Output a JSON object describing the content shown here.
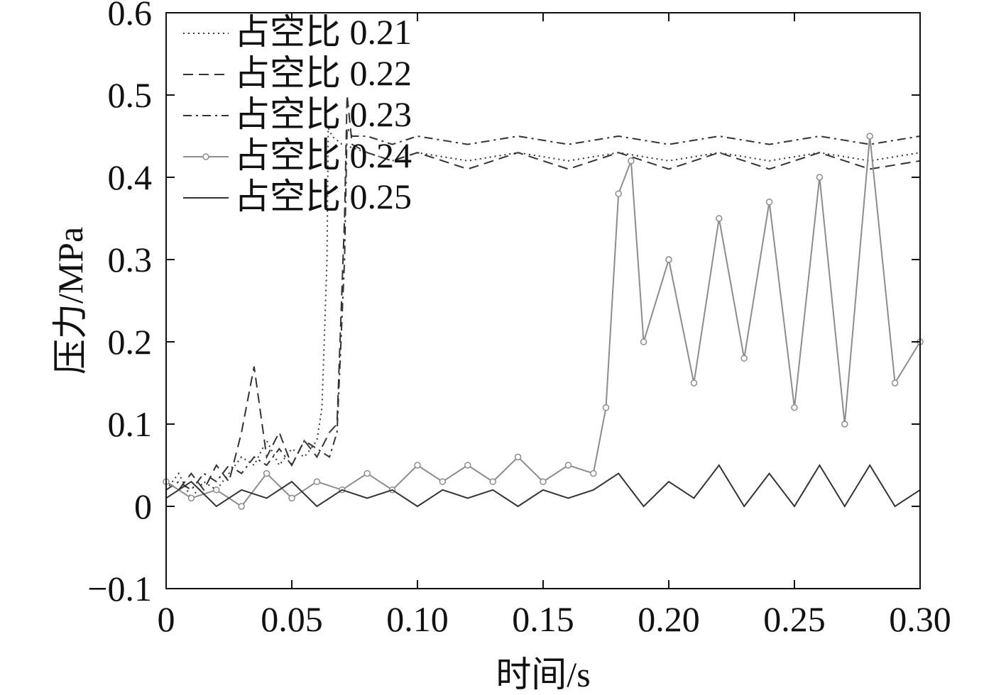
{
  "chart_data": {
    "type": "line",
    "xlabel": "时间/s",
    "ylabel": "压力/MPa",
    "xlim": [
      0,
      0.3
    ],
    "ylim": [
      -0.1,
      0.6
    ],
    "x_ticks": [
      0,
      0.05,
      0.1,
      0.15,
      0.2,
      0.25,
      0.3
    ],
    "x_tick_labels": [
      "0",
      "0.05",
      "0.10",
      "0.15",
      "0.20",
      "0.25",
      "0.30"
    ],
    "y_ticks": [
      -0.1,
      0,
      0.1,
      0.2,
      0.3,
      0.4,
      0.5,
      0.6
    ],
    "y_tick_labels": [
      "−0.1",
      "0",
      "0.1",
      "0.2",
      "0.3",
      "0.4",
      "0.5",
      "0.6"
    ],
    "grid": false,
    "legend_position": "top-left",
    "series": [
      {
        "name": "占空比 0.21",
        "style": "dotted",
        "color": "#333333",
        "x": [
          0,
          0.005,
          0.01,
          0.015,
          0.02,
          0.025,
          0.03,
          0.035,
          0.04,
          0.045,
          0.05,
          0.055,
          0.06,
          0.062,
          0.064,
          0.0645,
          0.066,
          0.07,
          0.08,
          0.09,
          0.1,
          0.12,
          0.14,
          0.16,
          0.18,
          0.2,
          0.22,
          0.24,
          0.26,
          0.28,
          0.3
        ],
        "y": [
          0.02,
          0.04,
          0.01,
          0.03,
          0.02,
          0.04,
          0.06,
          0.05,
          0.08,
          0.05,
          0.07,
          0.06,
          0.08,
          0.12,
          0.3,
          0.46,
          0.45,
          0.44,
          0.43,
          0.42,
          0.43,
          0.42,
          0.43,
          0.42,
          0.43,
          0.42,
          0.43,
          0.42,
          0.43,
          0.42,
          0.43
        ]
      },
      {
        "name": "占空比 0.22",
        "style": "dashed",
        "color": "#333333",
        "x": [
          0,
          0.005,
          0.01,
          0.015,
          0.02,
          0.025,
          0.03,
          0.035,
          0.04,
          0.045,
          0.05,
          0.055,
          0.06,
          0.065,
          0.068,
          0.071,
          0.072,
          0.074,
          0.08,
          0.09,
          0.1,
          0.12,
          0.14,
          0.16,
          0.18,
          0.2,
          0.22,
          0.24,
          0.26,
          0.28,
          0.3
        ],
        "y": [
          0.03,
          0.02,
          0.04,
          0.02,
          0.05,
          0.03,
          0.09,
          0.17,
          0.06,
          0.09,
          0.05,
          0.08,
          0.06,
          0.09,
          0.1,
          0.35,
          0.5,
          0.44,
          0.43,
          0.42,
          0.43,
          0.41,
          0.43,
          0.41,
          0.43,
          0.41,
          0.43,
          0.41,
          0.43,
          0.41,
          0.42
        ]
      },
      {
        "name": "占空比 0.23",
        "style": "dashdot",
        "color": "#333333",
        "x": [
          0,
          0.005,
          0.01,
          0.015,
          0.02,
          0.025,
          0.03,
          0.035,
          0.04,
          0.045,
          0.05,
          0.055,
          0.06,
          0.065,
          0.068,
          0.071,
          0.072,
          0.074,
          0.08,
          0.09,
          0.1,
          0.12,
          0.14,
          0.16,
          0.18,
          0.2,
          0.22,
          0.24,
          0.26,
          0.28,
          0.3
        ],
        "y": [
          0.02,
          0.03,
          0.02,
          0.04,
          0.03,
          0.05,
          0.04,
          0.06,
          0.05,
          0.07,
          0.05,
          0.08,
          0.07,
          0.06,
          0.09,
          0.3,
          0.46,
          0.45,
          0.45,
          0.44,
          0.45,
          0.44,
          0.45,
          0.44,
          0.45,
          0.44,
          0.45,
          0.44,
          0.45,
          0.44,
          0.45
        ]
      },
      {
        "name": "占空比 0.24",
        "style": "solid-circles",
        "color": "#8c8c8c",
        "x": [
          0,
          0.01,
          0.02,
          0.03,
          0.04,
          0.05,
          0.06,
          0.07,
          0.08,
          0.09,
          0.1,
          0.11,
          0.12,
          0.13,
          0.14,
          0.15,
          0.16,
          0.17,
          0.175,
          0.18,
          0.185,
          0.19,
          0.2,
          0.21,
          0.22,
          0.23,
          0.24,
          0.25,
          0.26,
          0.27,
          0.28,
          0.29,
          0.3
        ],
        "y": [
          0.03,
          0.01,
          0.02,
          0.0,
          0.04,
          0.01,
          0.03,
          0.02,
          0.04,
          0.02,
          0.05,
          0.03,
          0.05,
          0.03,
          0.06,
          0.03,
          0.05,
          0.04,
          0.12,
          0.38,
          0.42,
          0.2,
          0.3,
          0.15,
          0.35,
          0.18,
          0.37,
          0.12,
          0.4,
          0.1,
          0.45,
          0.15,
          0.2
        ]
      },
      {
        "name": "占空比 0.25",
        "style": "solid",
        "color": "#333333",
        "x": [
          0,
          0.01,
          0.02,
          0.03,
          0.04,
          0.05,
          0.06,
          0.07,
          0.08,
          0.09,
          0.1,
          0.11,
          0.12,
          0.13,
          0.14,
          0.15,
          0.16,
          0.17,
          0.18,
          0.19,
          0.2,
          0.21,
          0.22,
          0.23,
          0.24,
          0.25,
          0.26,
          0.27,
          0.28,
          0.29,
          0.3
        ],
        "y": [
          0.01,
          0.03,
          0.0,
          0.02,
          0.01,
          0.03,
          0.0,
          0.02,
          0.01,
          0.02,
          0.0,
          0.02,
          0.01,
          0.02,
          0.0,
          0.02,
          0.01,
          0.02,
          0.04,
          0.0,
          0.03,
          0.01,
          0.05,
          0.0,
          0.04,
          0.0,
          0.05,
          0.0,
          0.05,
          0.0,
          0.02
        ]
      }
    ]
  }
}
